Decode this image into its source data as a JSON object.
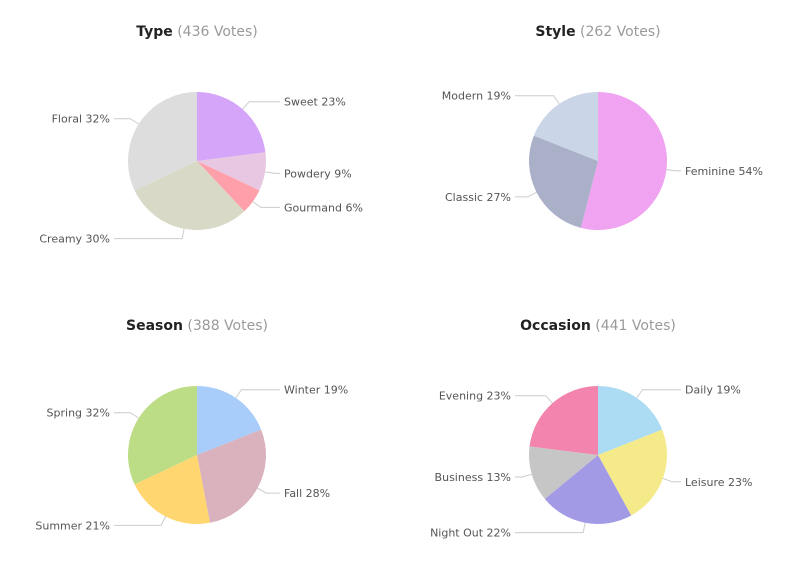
{
  "chart_data": [
    {
      "type": "pie",
      "title": "Type",
      "votes_label": "(436 Votes)",
      "slices": [
        {
          "label": "Sweet 23%",
          "value": 23,
          "color": "#d4a5f9"
        },
        {
          "label": "Powdery 9%",
          "value": 9,
          "color": "#e8c7e3"
        },
        {
          "label": "Gourmand 6%",
          "value": 6,
          "color": "#ff9fa9"
        },
        {
          "label": "Creamy 30%",
          "value": 30,
          "color": "#d8d9c6"
        },
        {
          "label": "Floral 32%",
          "value": 32,
          "color": "#dddddd"
        }
      ]
    },
    {
      "type": "pie",
      "title": "Style",
      "votes_label": "(262 Votes)",
      "slices": [
        {
          "label": "Feminine 54%",
          "value": 54,
          "color": "#f0a3f0"
        },
        {
          "label": "Classic 27%",
          "value": 27,
          "color": "#abb0c9"
        },
        {
          "label": "Modern 19%",
          "value": 19,
          "color": "#cad5e8"
        }
      ]
    },
    {
      "type": "pie",
      "title": "Season",
      "votes_label": "(388 Votes)",
      "slices": [
        {
          "label": "Winter 19%",
          "value": 19,
          "color": "#a8cdfa"
        },
        {
          "label": "Fall 28%",
          "value": 28,
          "color": "#d9b2bd"
        },
        {
          "label": "Summer 21%",
          "value": 21,
          "color": "#ffd670"
        },
        {
          "label": "Spring 32%",
          "value": 32,
          "color": "#bcdd85"
        }
      ]
    },
    {
      "type": "pie",
      "title": "Occasion",
      "votes_label": "(441 Votes)",
      "slices": [
        {
          "label": "Daily 19%",
          "value": 19,
          "color": "#abdcf3"
        },
        {
          "label": "Leisure 23%",
          "value": 23,
          "color": "#f5ea8a"
        },
        {
          "label": "Night Out 22%",
          "value": 22,
          "color": "#a39ae6"
        },
        {
          "label": "Business 13%",
          "value": 13,
          "color": "#c6c6c6"
        },
        {
          "label": "Evening 23%",
          "value": 23,
          "color": "#f284ad"
        }
      ]
    }
  ]
}
